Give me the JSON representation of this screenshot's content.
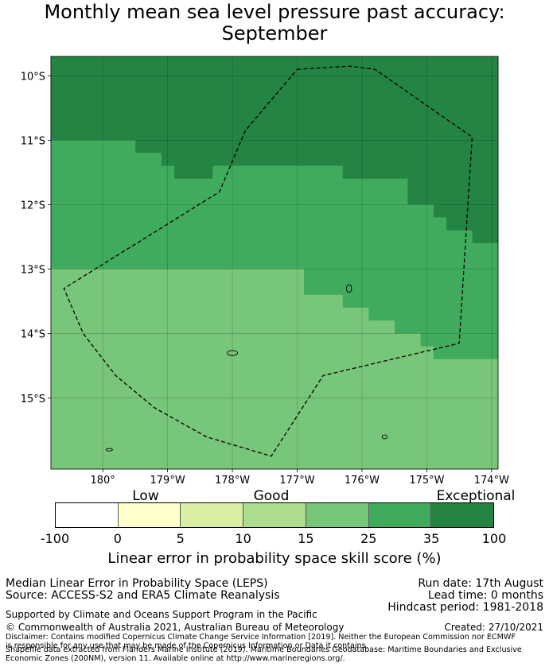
{
  "title_line1": "Monthly mean sea level pressure past accuracy:",
  "title_line2": "September",
  "map": {
    "lon_range": [
      -180.8,
      -173.9
    ],
    "lat_range": [
      -16.1,
      -9.7
    ],
    "lon_ticks": [
      {
        "value": -180,
        "label": "180°"
      },
      {
        "value": -179,
        "label": "179°W"
      },
      {
        "value": -178,
        "label": "178°W"
      },
      {
        "value": -177,
        "label": "177°W"
      },
      {
        "value": -176,
        "label": "176°W"
      },
      {
        "value": -175,
        "label": "175°W"
      },
      {
        "value": -174,
        "label": "174°W"
      }
    ],
    "lat_ticks": [
      {
        "value": -10,
        "label": "10°S"
      },
      {
        "value": -11,
        "label": "11°S"
      },
      {
        "value": -12,
        "label": "12°S"
      },
      {
        "value": -13,
        "label": "13°S"
      },
      {
        "value": -14,
        "label": "14°S"
      },
      {
        "value": -15,
        "label": "15°S"
      }
    ],
    "regions": [
      {
        "class": "35-100",
        "color": "#238443",
        "polygon": [
          [
            -180.8,
            -9.7
          ],
          [
            -173.9,
            -9.7
          ],
          [
            -173.9,
            -12.6
          ],
          [
            -174.3,
            -12.6
          ],
          [
            -174.3,
            -12.4
          ],
          [
            -174.7,
            -12.4
          ],
          [
            -174.7,
            -12.2
          ],
          [
            -174.9,
            -12.2
          ],
          [
            -174.9,
            -12.0
          ],
          [
            -175.3,
            -12.0
          ],
          [
            -175.3,
            -11.6
          ],
          [
            -176.3,
            -11.6
          ],
          [
            -176.3,
            -11.4
          ],
          [
            -178.3,
            -11.4
          ],
          [
            -178.3,
            -11.6
          ],
          [
            -178.9,
            -11.6
          ],
          [
            -178.9,
            -11.4
          ],
          [
            -179.1,
            -11.4
          ],
          [
            -179.1,
            -11.2
          ],
          [
            -179.5,
            -11.2
          ],
          [
            -179.5,
            -11.0
          ],
          [
            -180.8,
            -11.0
          ]
        ]
      },
      {
        "class": "25-35",
        "color": "#41ab5d",
        "polygon": [
          [
            -180.8,
            -11.0
          ],
          [
            -179.5,
            -11.0
          ],
          [
            -179.5,
            -11.2
          ],
          [
            -179.1,
            -11.2
          ],
          [
            -179.1,
            -11.4
          ],
          [
            -178.9,
            -11.4
          ],
          [
            -178.9,
            -11.6
          ],
          [
            -178.3,
            -11.6
          ],
          [
            -178.3,
            -11.4
          ],
          [
            -176.3,
            -11.4
          ],
          [
            -176.3,
            -11.6
          ],
          [
            -175.3,
            -11.6
          ],
          [
            -175.3,
            -12.0
          ],
          [
            -174.9,
            -12.0
          ],
          [
            -174.9,
            -12.2
          ],
          [
            -174.7,
            -12.2
          ],
          [
            -174.7,
            -12.4
          ],
          [
            -174.3,
            -12.4
          ],
          [
            -174.3,
            -12.6
          ],
          [
            -173.9,
            -12.6
          ],
          [
            -173.9,
            -14.4
          ],
          [
            -174.9,
            -14.4
          ],
          [
            -174.9,
            -14.2
          ],
          [
            -175.1,
            -14.2
          ],
          [
            -175.1,
            -14.0
          ],
          [
            -175.5,
            -14.0
          ],
          [
            -175.5,
            -13.8
          ],
          [
            -175.9,
            -13.8
          ],
          [
            -175.9,
            -13.6
          ],
          [
            -176.3,
            -13.6
          ],
          [
            -176.3,
            -13.4
          ],
          [
            -176.9,
            -13.4
          ],
          [
            -176.9,
            -13.0
          ],
          [
            -180.8,
            -13.0
          ]
        ]
      },
      {
        "class": "15-25",
        "color": "#78c679",
        "polygon": [
          [
            -180.8,
            -13.0
          ],
          [
            -176.9,
            -13.0
          ],
          [
            -176.9,
            -13.4
          ],
          [
            -176.3,
            -13.4
          ],
          [
            -176.3,
            -13.6
          ],
          [
            -175.9,
            -13.6
          ],
          [
            -175.9,
            -13.8
          ],
          [
            -175.5,
            -13.8
          ],
          [
            -175.5,
            -14.0
          ],
          [
            -175.1,
            -14.0
          ],
          [
            -175.1,
            -14.2
          ],
          [
            -174.9,
            -14.2
          ],
          [
            -174.9,
            -14.4
          ],
          [
            -173.9,
            -14.4
          ],
          [
            -173.9,
            -16.1
          ],
          [
            -180.8,
            -16.1
          ]
        ]
      }
    ],
    "boundary": [
      [
        -177.0,
        -9.9
      ],
      [
        -176.2,
        -9.85
      ],
      [
        -175.8,
        -9.9
      ],
      [
        -174.3,
        -10.95
      ],
      [
        -174.5,
        -14.15
      ],
      [
        -176.6,
        -14.65
      ],
      [
        -177.4,
        -15.9
      ],
      [
        -178.4,
        -15.6
      ],
      [
        -179.2,
        -15.15
      ],
      [
        -179.8,
        -14.65
      ],
      [
        -180.3,
        -14.0
      ],
      [
        -180.6,
        -13.3
      ],
      [
        -178.2,
        -11.8
      ],
      [
        -177.8,
        -10.85
      ]
    ],
    "islands": [
      {
        "lon": -176.2,
        "lat": -13.3,
        "rx": 0.04,
        "ry": 0.06
      },
      {
        "lon": -178.0,
        "lat": -14.3,
        "rx": 0.08,
        "ry": 0.04
      },
      {
        "lon": -175.65,
        "lat": -15.6,
        "rx": 0.04,
        "ry": 0.03
      },
      {
        "lon": -179.9,
        "lat": -15.8,
        "rx": 0.05,
        "ry": 0.02
      }
    ]
  },
  "colorbar": {
    "segments": [
      {
        "color": "#ffffff"
      },
      {
        "color": "#ffffcc"
      },
      {
        "color": "#d9f0a3"
      },
      {
        "color": "#addd8e"
      },
      {
        "color": "#78c679"
      },
      {
        "color": "#41ab5d"
      },
      {
        "color": "#238443"
      }
    ],
    "ticks": [
      "-100",
      "0",
      "5",
      "10",
      "15",
      "25",
      "35",
      "100"
    ],
    "categories": {
      "low": "Low",
      "good": "Good",
      "exceptional": "Exceptional"
    },
    "label": "Linear error in probability space skill score (%)"
  },
  "footer": {
    "method": "Median Linear Error in Probability Space (LEPS)",
    "source": "Source: ACCESS-S2 and ERA5 Climate Reanalysis",
    "run_date": "Run date: 17th August",
    "lead_time": "Lead time: 0 months",
    "hindcast": "Hindcast period: 1981-2018",
    "supported": "Supported by Climate and Oceans Support Program in the Pacific",
    "copyright": "© Commonwealth of Australia 2021, Australian Bureau of Meteorology",
    "created": "Created: 27/10/2021",
    "disclaimer": "Disclaimer: Contains modified Copernicus Climate Change Service Information [2019]. Neither the European Commission nor ECMWF is responsible for any use that may be made of the Copernicus Information or Data it contains.",
    "shapefile": "Shapefile data extracted from Flanders Marine Institute (2019). Maritime Boundaries Geodatabase: Maritime Boundaries and Exclusive Economic Zones (200NM), version 11. Available online at http://www.marineregions.org/."
  }
}
